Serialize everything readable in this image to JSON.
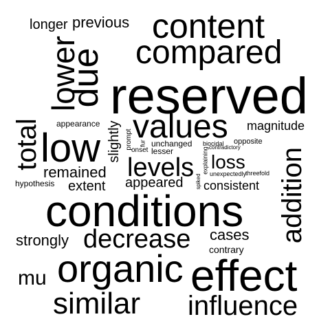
{
  "word_cloud": {
    "text_color": "#000000",
    "background_color": "#ffffff",
    "words": {
      "longer": "longer",
      "previous": "previous",
      "content": "content",
      "compared": "compared",
      "lower": "lower",
      "due": "due",
      "reserved": "reserved",
      "total": "total",
      "appearance": "appearance",
      "slightly": "slightly",
      "prompt": "prompt",
      "values": "values",
      "magnitude": "magnitude",
      "low": "low",
      "fur": "fur",
      "unchanged": "unchanged",
      "biocidal": "biocidal",
      "opposite": "opposite",
      "onset": "onset",
      "lesser": "lesser",
      "contradictory": "contradictory",
      "explaining": "explaining",
      "unexpectedly": "unexpectedly",
      "threefold": "threefold",
      "loss": "loss",
      "levels": "levels",
      "remained": "remained",
      "hypothesis": "hypothesis",
      "extent": "extent",
      "appeared": "appeared",
      "spiked": "spiked",
      "consistent": "consistent",
      "addition": "addition",
      "conditions": "conditions",
      "strongly": "strongly",
      "decrease": "decrease",
      "cases": "cases",
      "contrary": "contrary",
      "mu": "mu",
      "organic": "organic",
      "effect": "effect",
      "similar": "similar",
      "influence": "influence"
    }
  }
}
